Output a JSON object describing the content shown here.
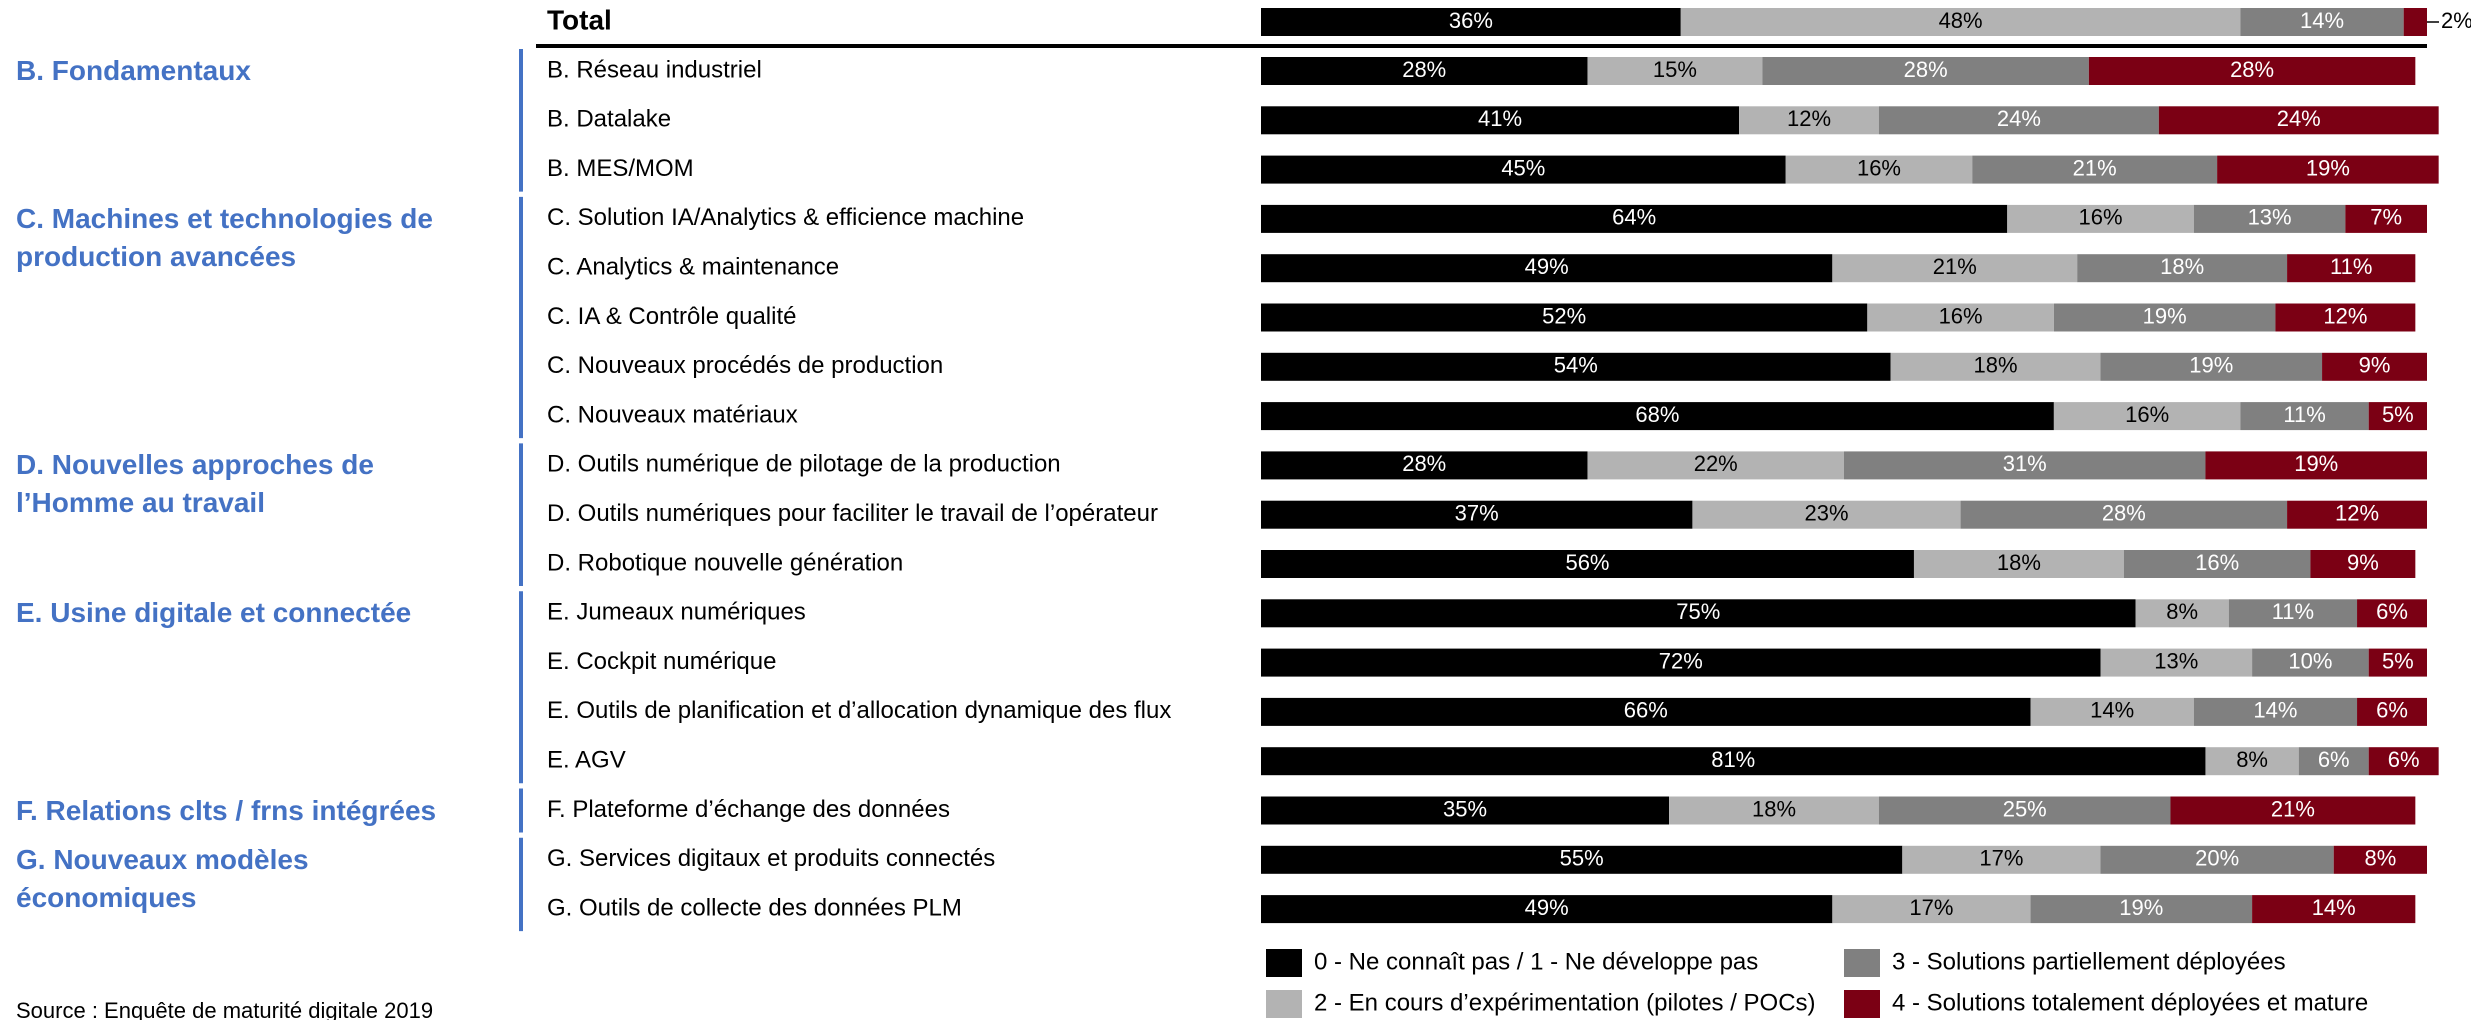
{
  "chart_data": {
    "type": "stacked-bar-horizontal",
    "categories": [
      "Total",
      "B. Réseau industriel",
      "B. Datalake",
      "B. MES/MOM",
      "C. Solution IA/Analytics & efficience machine",
      "C. Analytics & maintenance",
      "C. IA & Contrôle qualité",
      "C. Nouveaux procédés de production",
      "C. Nouveaux matériaux",
      "D. Outils numérique de pilotage de la production",
      "D. Outils numériques pour faciliter le travail de l’opérateur",
      "D. Robotique nouvelle génération",
      "E. Jumeaux numériques",
      "E. Cockpit numérique",
      "E. Outils de planification et d’allocation dynamique des flux",
      "E. AGV",
      "F. Plateforme d’échange des données",
      "G. Services digitaux et produits connectés",
      "G. Outils de collecte des données PLM"
    ],
    "groups": [
      "B. Fondamentaux",
      "C. Machines et technologies de production avancées",
      "D. Nouvelles approches de l’Homme au travail",
      "E. Usine digitale et connectée",
      "F. Relations clts / frns intégrées",
      "G. Nouveaux modèles économiques"
    ],
    "series": [
      {
        "name": "0 - Ne connaît pas / 1 - Ne développe pas",
        "color": "#000000",
        "label_color": "#ffffff",
        "values": [
          36,
          28,
          41,
          45,
          64,
          49,
          52,
          54,
          68,
          28,
          37,
          56,
          75,
          72,
          66,
          81,
          35,
          55,
          49
        ],
        "value_labels": [
          "36%",
          "28%",
          "41%",
          "45%",
          "64%",
          "49%",
          "52%",
          "54%",
          "68%",
          "28%",
          "37%",
          "56%",
          "75%",
          "72%",
          "66%",
          "81%",
          "35%",
          "55%",
          "49%"
        ]
      },
      {
        "name": "2 - En cours d’expérimentation (pilotes / POCs)",
        "color": "#b3b3b3",
        "label_color": "#000000",
        "values": [
          48,
          15,
          12,
          16,
          16,
          21,
          16,
          18,
          16,
          22,
          23,
          18,
          8,
          13,
          14,
          8,
          18,
          17,
          17
        ],
        "value_labels": [
          "48%",
          "15%",
          "12%",
          "16%",
          "16%",
          "21%",
          "16%",
          "18%",
          "16%",
          "22%",
          "23%",
          "18%",
          "8%",
          "13%",
          "14%",
          "8%",
          "18%",
          "17%",
          "17%"
        ]
      },
      {
        "name": "3 - Solutions partiellement déployées",
        "color": "#808080",
        "label_color": "#ffffff",
        "values": [
          14,
          28,
          24,
          21,
          13,
          18,
          19,
          19,
          11,
          31,
          28,
          16,
          11,
          10,
          14,
          6,
          25,
          20,
          19
        ],
        "value_labels": [
          "14%",
          "28%",
          "24%",
          "21%",
          "13%",
          "18%",
          "19%",
          "19%",
          "11%",
          "31%",
          "28%",
          "16%",
          "11%",
          "10%",
          "14%",
          "6%",
          "25%",
          "20%",
          "19%"
        ]
      },
      {
        "name": "4 - Solutions totalement déployées et mature",
        "color": "#7b0014",
        "label_color": "#ffffff",
        "values": [
          2,
          28,
          24,
          19,
          7,
          11,
          12,
          9,
          5,
          19,
          12,
          9,
          6,
          5,
          6,
          6,
          21,
          8,
          14
        ],
        "value_labels": [
          "2%",
          "28%",
          "24%",
          "19%",
          "7%",
          "11%",
          "12%",
          "9%",
          "5%",
          "19%",
          "12%",
          "9%",
          "6%",
          "5%",
          "6%",
          "6%",
          "21%",
          "8%",
          "14%"
        ]
      }
    ],
    "xlim": [
      0,
      100
    ],
    "source": "Source : Enquête de maturité digitale 2019"
  }
}
